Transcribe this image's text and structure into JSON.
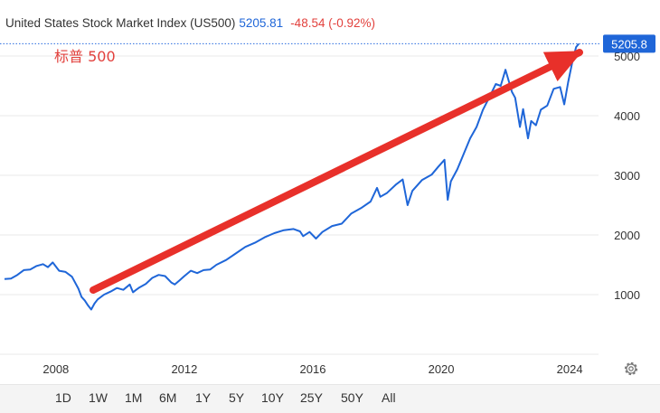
{
  "header": {
    "title": "United States Stock Market Index (US500)",
    "price": "5205.81",
    "change": "-48.54 (-0.92%)"
  },
  "annotation": {
    "label": "标普 500",
    "color": "#e2413d"
  },
  "price_badge": "5205.8",
  "colors": {
    "line": "#1f66d8",
    "arrow": "#e8302a",
    "grid": "#e9e9e9",
    "badge_bg": "#1f66d8",
    "change": "#e2413d"
  },
  "chart_data": {
    "type": "line",
    "title": "United States Stock Market Index (US500)",
    "x_ticks": [
      "2008",
      "2012",
      "2016",
      "2020",
      "2024"
    ],
    "y_ticks": [
      1000,
      2000,
      3000,
      4000,
      5000
    ],
    "xlim": [
      2006.4,
      2024.7
    ],
    "ylim": [
      0,
      5300
    ],
    "grid": true,
    "last_value": 5205.8,
    "series": [
      {
        "x": [
          2006.4,
          2006.6,
          2006.8,
          2007.0,
          2007.2,
          2007.4,
          2007.6,
          2007.75,
          2007.9,
          2008.1,
          2008.3,
          2008.5,
          2008.7,
          2008.8,
          2008.9,
          2009.0,
          2009.1,
          2009.2,
          2009.3,
          2009.5,
          2009.7,
          2009.9,
          2010.1,
          2010.3,
          2010.4,
          2010.5,
          2010.6,
          2010.8,
          2011.0,
          2011.2,
          2011.4,
          2011.6,
          2011.7,
          2011.85,
          2012.0,
          2012.2,
          2012.4,
          2012.6,
          2012.8,
          2013.0,
          2013.3,
          2013.6,
          2013.9,
          2014.2,
          2014.5,
          2014.8,
          2015.1,
          2015.4,
          2015.6,
          2015.7,
          2015.9,
          2016.1,
          2016.3,
          2016.6,
          2016.9,
          2017.2,
          2017.5,
          2017.8,
          2018.0,
          2018.1,
          2018.3,
          2018.6,
          2018.8,
          2018.95,
          2019.1,
          2019.4,
          2019.7,
          2019.9,
          2020.1,
          2020.2,
          2020.3,
          2020.5,
          2020.7,
          2020.9,
          2021.1,
          2021.3,
          2021.5,
          2021.7,
          2021.85,
          2022.0,
          2022.2,
          2022.3,
          2022.45,
          2022.55,
          2022.7,
          2022.8,
          2022.95,
          2023.1,
          2023.3,
          2023.5,
          2023.7,
          2023.83,
          2023.95,
          2024.1,
          2024.2,
          2024.28
        ],
        "values": [
          1260,
          1270,
          1330,
          1410,
          1420,
          1480,
          1510,
          1460,
          1540,
          1400,
          1380,
          1300,
          1100,
          960,
          900,
          820,
          750,
          850,
          920,
          1000,
          1050,
          1110,
          1080,
          1170,
          1040,
          1080,
          1120,
          1180,
          1280,
          1330,
          1310,
          1200,
          1170,
          1240,
          1310,
          1400,
          1360,
          1410,
          1420,
          1500,
          1580,
          1690,
          1800,
          1870,
          1960,
          2030,
          2080,
          2100,
          2060,
          1980,
          2050,
          1940,
          2050,
          2150,
          2190,
          2360,
          2450,
          2560,
          2790,
          2640,
          2700,
          2850,
          2930,
          2500,
          2740,
          2920,
          3010,
          3140,
          3260,
          2590,
          2900,
          3100,
          3360,
          3620,
          3810,
          4100,
          4310,
          4530,
          4500,
          4770,
          4400,
          4300,
          3810,
          4110,
          3620,
          3910,
          3840,
          4100,
          4170,
          4450,
          4480,
          4190,
          4560,
          4950,
          5150,
          5205
        ]
      }
    ]
  },
  "time_ranges": [
    "1D",
    "1W",
    "1M",
    "6M",
    "1Y",
    "5Y",
    "10Y",
    "25Y",
    "50Y",
    "All"
  ]
}
